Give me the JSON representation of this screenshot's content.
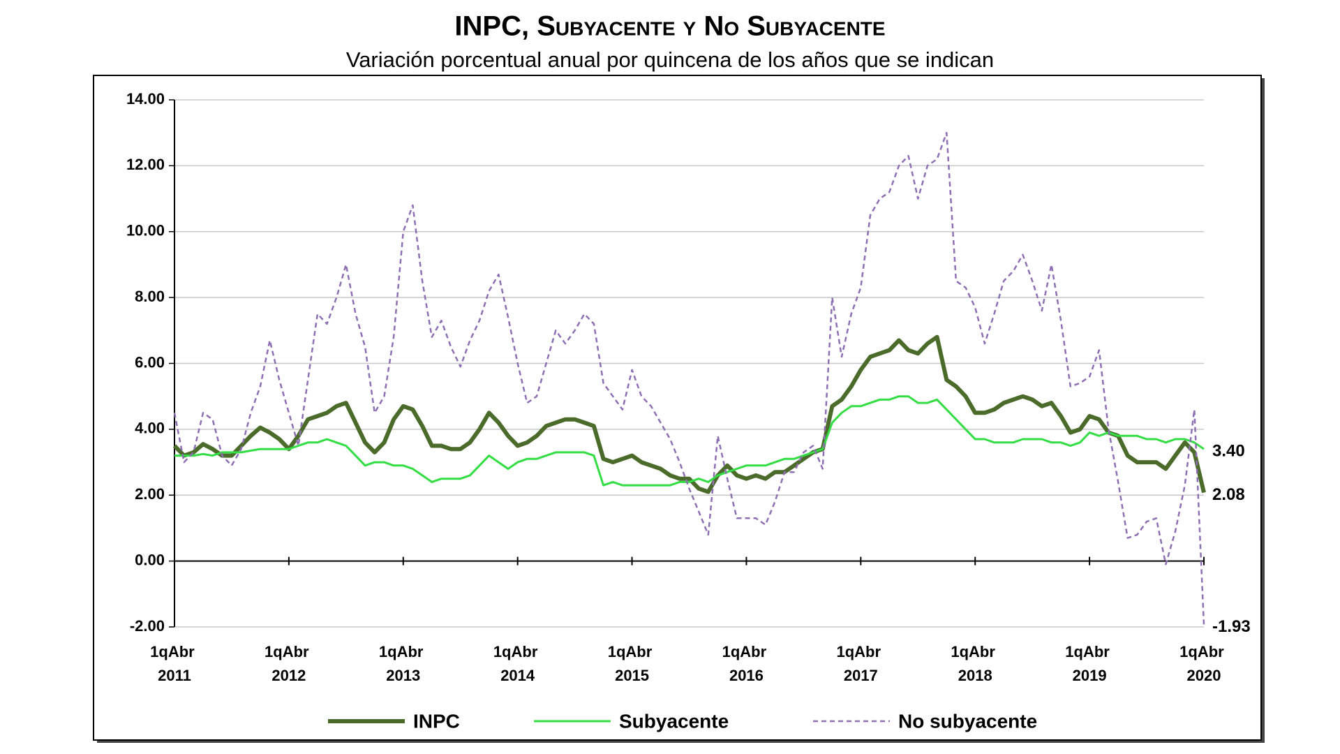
{
  "chart_data": {
    "type": "line",
    "title": "INPC, Subyacente y No Subyacente",
    "subtitle": "Variación porcentual anual por quincena de los años que se indican",
    "categories": [
      "1qAbr 2011",
      null,
      null,
      null,
      null,
      null,
      null,
      null,
      null,
      null,
      null,
      null,
      "1qAbr 2012",
      null,
      null,
      null,
      null,
      null,
      null,
      null,
      null,
      null,
      null,
      null,
      "1qAbr 2013",
      null,
      null,
      null,
      null,
      null,
      null,
      null,
      null,
      null,
      null,
      null,
      "1qAbr 2014",
      null,
      null,
      null,
      null,
      null,
      null,
      null,
      null,
      null,
      null,
      null,
      "1qAbr 2015",
      null,
      null,
      null,
      null,
      null,
      null,
      null,
      null,
      null,
      null,
      null,
      "1qAbr 2016",
      null,
      null,
      null,
      null,
      null,
      null,
      null,
      null,
      null,
      null,
      null,
      "1qAbr 2017",
      null,
      null,
      null,
      null,
      null,
      null,
      null,
      null,
      null,
      null,
      null,
      "1qAbr 2018",
      null,
      null,
      null,
      null,
      null,
      null,
      null,
      null,
      null,
      null,
      null,
      "1qAbr 2019",
      null,
      null,
      null,
      null,
      null,
      null,
      null,
      null,
      null,
      null,
      null,
      "1qAbr 2020"
    ],
    "ylim": [
      -2,
      14
    ],
    "yticks": [
      {
        "value": -2,
        "label": "-2.00"
      },
      {
        "value": 0,
        "label": "0.00"
      },
      {
        "value": 2,
        "label": "2.00"
      },
      {
        "value": 4,
        "label": "4.00"
      },
      {
        "value": 6,
        "label": "6.00"
      },
      {
        "value": 8,
        "label": "8.00"
      },
      {
        "value": 10,
        "label": "10.00"
      },
      {
        "value": 12,
        "label": "12.00"
      },
      {
        "value": 14,
        "label": "14.00"
      }
    ],
    "grid": true,
    "legend": "bottom",
    "series": [
      {
        "name": "INPC",
        "color": "#4b6b2a",
        "width": 6,
        "dashed": false,
        "end_label": "2.08",
        "values": [
          3.5,
          3.2,
          3.3,
          3.55,
          3.4,
          3.2,
          3.2,
          3.5,
          3.8,
          4.05,
          3.9,
          3.7,
          3.4,
          3.8,
          4.3,
          4.4,
          4.5,
          4.7,
          4.8,
          4.2,
          3.6,
          3.3,
          3.6,
          4.3,
          4.7,
          4.6,
          4.1,
          3.5,
          3.5,
          3.4,
          3.4,
          3.6,
          4.0,
          4.5,
          4.2,
          3.8,
          3.5,
          3.6,
          3.8,
          4.1,
          4.2,
          4.3,
          4.3,
          4.2,
          4.1,
          3.1,
          3.0,
          3.1,
          3.2,
          3.0,
          2.9,
          2.8,
          2.6,
          2.5,
          2.5,
          2.2,
          2.1,
          2.6,
          2.9,
          2.6,
          2.5,
          2.6,
          2.5,
          2.7,
          2.7,
          2.9,
          3.1,
          3.3,
          3.4,
          4.7,
          4.9,
          5.3,
          5.8,
          6.2,
          6.3,
          6.4,
          6.7,
          6.4,
          6.3,
          6.6,
          6.8,
          5.5,
          5.3,
          5.0,
          4.5,
          4.5,
          4.6,
          4.8,
          4.9,
          5.0,
          4.9,
          4.7,
          4.8,
          4.4,
          3.9,
          4.0,
          4.4,
          4.3,
          3.9,
          3.8,
          3.2,
          3.0,
          3.0,
          3.0,
          2.8,
          3.2,
          3.6,
          3.3,
          2.08
        ]
      },
      {
        "name": "Subyacente",
        "color": "#33dd44",
        "width": 3,
        "dashed": false,
        "end_label": "3.40",
        "values": [
          3.2,
          3.2,
          3.2,
          3.25,
          3.2,
          3.3,
          3.3,
          3.3,
          3.35,
          3.4,
          3.4,
          3.4,
          3.4,
          3.5,
          3.6,
          3.6,
          3.7,
          3.6,
          3.5,
          3.2,
          2.9,
          3.0,
          3.0,
          2.9,
          2.9,
          2.8,
          2.6,
          2.4,
          2.5,
          2.5,
          2.5,
          2.6,
          2.9,
          3.2,
          3.0,
          2.8,
          3.0,
          3.1,
          3.1,
          3.2,
          3.3,
          3.3,
          3.3,
          3.3,
          3.2,
          2.3,
          2.4,
          2.3,
          2.3,
          2.3,
          2.3,
          2.3,
          2.3,
          2.4,
          2.4,
          2.5,
          2.4,
          2.6,
          2.7,
          2.8,
          2.9,
          2.9,
          2.9,
          3.0,
          3.1,
          3.1,
          3.2,
          3.3,
          3.4,
          4.2,
          4.5,
          4.7,
          4.7,
          4.8,
          4.9,
          4.9,
          5.0,
          5.0,
          4.8,
          4.8,
          4.9,
          4.6,
          4.3,
          4.0,
          3.7,
          3.7,
          3.6,
          3.6,
          3.6,
          3.7,
          3.7,
          3.7,
          3.6,
          3.6,
          3.5,
          3.6,
          3.9,
          3.8,
          3.9,
          3.8,
          3.8,
          3.8,
          3.7,
          3.7,
          3.6,
          3.7,
          3.7,
          3.6,
          3.4
        ]
      },
      {
        "name": "No subyacente",
        "color": "#8f6fb3",
        "width": 2.5,
        "dashed": true,
        "end_label": "-1.93",
        "values": [
          4.5,
          3.0,
          3.3,
          4.5,
          4.3,
          3.2,
          2.9,
          3.4,
          4.5,
          5.3,
          6.7,
          5.5,
          4.5,
          3.5,
          5.5,
          7.5,
          7.2,
          8.0,
          9.0,
          7.5,
          6.5,
          4.5,
          5.0,
          6.8,
          10.0,
          10.8,
          8.5,
          6.8,
          7.3,
          6.5,
          5.9,
          6.7,
          7.3,
          8.2,
          8.7,
          7.4,
          6.0,
          4.8,
          5.0,
          6.0,
          7.0,
          6.6,
          7.0,
          7.5,
          7.2,
          5.4,
          5.0,
          4.6,
          5.8,
          5.0,
          4.7,
          4.2,
          3.7,
          3.0,
          2.2,
          1.5,
          0.8,
          3.8,
          2.5,
          1.3,
          1.3,
          1.3,
          1.1,
          1.8,
          2.7,
          2.7,
          3.3,
          3.5,
          2.8,
          8.0,
          6.2,
          7.5,
          8.3,
          10.5,
          11.0,
          11.2,
          12.0,
          12.3,
          11.0,
          12.0,
          12.2,
          13.0,
          8.5,
          8.3,
          7.7,
          6.6,
          7.5,
          8.5,
          8.8,
          9.3,
          8.5,
          7.6,
          9.0,
          7.3,
          5.3,
          5.4,
          5.6,
          6.4,
          4.0,
          2.4,
          0.7,
          0.8,
          1.2,
          1.3,
          -0.1,
          0.9,
          2.3,
          4.6,
          -1.93
        ]
      }
    ]
  }
}
